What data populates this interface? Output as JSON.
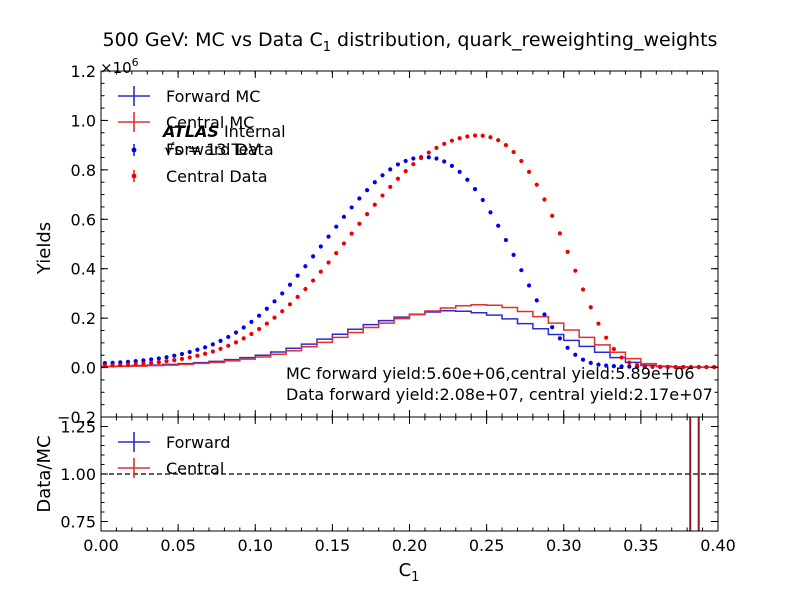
{
  "chart_data": [
    {
      "type": "line",
      "panel": "main",
      "title_prefix": "500 GeV: MC vs Data C",
      "title_sub": "1",
      "title_suffix": " distribution, quark_reweighting_weights",
      "xlabel_main": "C",
      "xlabel_sub": "1",
      "ylabel": "Yields",
      "scale_base": "×10",
      "scale_exp": "6",
      "xlim": [
        0.0,
        0.4
      ],
      "ylim": [
        -0.2,
        1.2
      ],
      "grid": false,
      "legend_position": "top-left",
      "x_tick_labels": [
        "0.00",
        "0.05",
        "0.10",
        "0.15",
        "0.20",
        "0.25",
        "0.30",
        "0.35",
        "0.40"
      ],
      "y_tick_labels": [
        "−0.2",
        "0.0",
        "0.2",
        "0.4",
        "0.6",
        "0.8",
        "1.0",
        "1.2"
      ],
      "bin_edges": [
        0.0,
        0.01,
        0.02,
        0.03,
        0.04,
        0.05,
        0.06,
        0.07,
        0.08,
        0.09,
        0.1,
        0.11,
        0.12,
        0.13,
        0.14,
        0.15,
        0.16,
        0.17,
        0.18,
        0.19,
        0.2,
        0.21,
        0.22,
        0.23,
        0.24,
        0.25,
        0.26,
        0.27,
        0.28,
        0.29,
        0.3,
        0.31,
        0.32,
        0.33,
        0.34,
        0.35,
        0.36,
        0.37,
        0.38,
        0.39,
        0.4
      ],
      "series": [
        {
          "name": "Forward MC",
          "style": "step",
          "color": "#2b2bd6",
          "values": [
            0.005,
            0.006,
            0.008,
            0.01,
            0.013,
            0.016,
            0.02,
            0.025,
            0.032,
            0.04,
            0.05,
            0.063,
            0.078,
            0.095,
            0.115,
            0.135,
            0.155,
            0.174,
            0.19,
            0.204,
            0.216,
            0.225,
            0.23,
            0.228,
            0.222,
            0.212,
            0.197,
            0.178,
            0.157,
            0.134,
            0.11,
            0.086,
            0.062,
            0.04,
            0.021,
            0.009,
            0.004,
            0.003,
            0.002,
            0.002
          ]
        },
        {
          "name": "Central MC",
          "style": "step",
          "color": "#e03030",
          "values": [
            0.004,
            0.005,
            0.006,
            0.008,
            0.01,
            0.013,
            0.017,
            0.021,
            0.027,
            0.034,
            0.043,
            0.054,
            0.068,
            0.084,
            0.102,
            0.122,
            0.142,
            0.162,
            0.18,
            0.198,
            0.214,
            0.229,
            0.241,
            0.25,
            0.254,
            0.252,
            0.243,
            0.227,
            0.206,
            0.18,
            0.152,
            0.122,
            0.092,
            0.062,
            0.036,
            0.016,
            0.006,
            0.003,
            0.002,
            0.002
          ]
        },
        {
          "name": "Forward Data",
          "style": "points",
          "color": "#0000ee",
          "x": [
            0.0025,
            0.0075,
            0.0125,
            0.0175,
            0.0225,
            0.0275,
            0.0325,
            0.0375,
            0.0425,
            0.0475,
            0.0525,
            0.0575,
            0.0625,
            0.0675,
            0.0725,
            0.0775,
            0.0825,
            0.0875,
            0.0925,
            0.0975,
            0.1025,
            0.1075,
            0.1125,
            0.1175,
            0.1225,
            0.1275,
            0.1325,
            0.1375,
            0.1425,
            0.1475,
            0.1525,
            0.1575,
            0.1625,
            0.1675,
            0.1725,
            0.1775,
            0.1825,
            0.1875,
            0.1925,
            0.1975,
            0.2025,
            0.2075,
            0.2125,
            0.2175,
            0.2225,
            0.2275,
            0.2325,
            0.2375,
            0.2425,
            0.2475,
            0.2525,
            0.2575,
            0.2625,
            0.2675,
            0.2725,
            0.2775,
            0.2825,
            0.2875,
            0.2925,
            0.2975,
            0.3025,
            0.3075,
            0.3125,
            0.3175,
            0.3225,
            0.3275,
            0.3325,
            0.3375,
            0.3425,
            0.3475,
            0.3525,
            0.3575,
            0.3625,
            0.3675,
            0.3725,
            0.3775,
            0.3825,
            0.3875,
            0.3925,
            0.3975
          ],
          "values": [
            0.018,
            0.019,
            0.021,
            0.023,
            0.026,
            0.029,
            0.033,
            0.037,
            0.042,
            0.048,
            0.055,
            0.063,
            0.072,
            0.082,
            0.094,
            0.108,
            0.124,
            0.142,
            0.162,
            0.185,
            0.21,
            0.238,
            0.268,
            0.3,
            0.335,
            0.372,
            0.41,
            0.45,
            0.49,
            0.53,
            0.57,
            0.61,
            0.648,
            0.684,
            0.718,
            0.75,
            0.778,
            0.802,
            0.822,
            0.836,
            0.846,
            0.851,
            0.851,
            0.846,
            0.834,
            0.816,
            0.792,
            0.76,
            0.722,
            0.678,
            0.628,
            0.574,
            0.516,
            0.456,
            0.394,
            0.332,
            0.272,
            0.215,
            0.163,
            0.118,
            0.08,
            0.052,
            0.032,
            0.019,
            0.012,
            0.008,
            0.006,
            0.005,
            0.004,
            0.004,
            0.003,
            0.003,
            0.003,
            0.002,
            0.002,
            0.002,
            0.002,
            0.002,
            0.002,
            0.002
          ]
        },
        {
          "name": "Central Data",
          "style": "points",
          "color": "#ee0000",
          "x": [
            0.0025,
            0.0075,
            0.0125,
            0.0175,
            0.0225,
            0.0275,
            0.0325,
            0.0375,
            0.0425,
            0.0475,
            0.0525,
            0.0575,
            0.0625,
            0.0675,
            0.0725,
            0.0775,
            0.0825,
            0.0875,
            0.0925,
            0.0975,
            0.1025,
            0.1075,
            0.1125,
            0.1175,
            0.1225,
            0.1275,
            0.1325,
            0.1375,
            0.1425,
            0.1475,
            0.1525,
            0.1575,
            0.1625,
            0.1675,
            0.1725,
            0.1775,
            0.1825,
            0.1875,
            0.1925,
            0.1975,
            0.2025,
            0.2075,
            0.2125,
            0.2175,
            0.2225,
            0.2275,
            0.2325,
            0.2375,
            0.2425,
            0.2475,
            0.2525,
            0.2575,
            0.2625,
            0.2675,
            0.2725,
            0.2775,
            0.2825,
            0.2875,
            0.2925,
            0.2975,
            0.3025,
            0.3075,
            0.3125,
            0.3175,
            0.3225,
            0.3275,
            0.3325,
            0.3375,
            0.3425,
            0.3475,
            0.3525,
            0.3575,
            0.3625,
            0.3675,
            0.3725,
            0.3775,
            0.3825,
            0.3875,
            0.3925,
            0.3975
          ],
          "values": [
            0.008,
            0.009,
            0.01,
            0.012,
            0.014,
            0.016,
            0.019,
            0.022,
            0.026,
            0.03,
            0.035,
            0.041,
            0.048,
            0.056,
            0.065,
            0.076,
            0.088,
            0.102,
            0.118,
            0.136,
            0.156,
            0.178,
            0.202,
            0.228,
            0.256,
            0.286,
            0.318,
            0.352,
            0.388,
            0.425,
            0.463,
            0.502,
            0.542,
            0.582,
            0.621,
            0.659,
            0.696,
            0.731,
            0.764,
            0.795,
            0.823,
            0.848,
            0.87,
            0.889,
            0.905,
            0.918,
            0.928,
            0.935,
            0.939,
            0.938,
            0.932,
            0.92,
            0.9,
            0.872,
            0.836,
            0.792,
            0.74,
            0.68,
            0.614,
            0.543,
            0.468,
            0.392,
            0.316,
            0.244,
            0.178,
            0.121,
            0.075,
            0.041,
            0.02,
            0.01,
            0.006,
            0.004,
            0.003,
            0.003,
            0.002,
            0.002,
            0.002,
            0.002,
            0.002,
            0.002
          ]
        }
      ],
      "annotations": {
        "atlas_bold": "ATLAS",
        "atlas_rest": " Internal",
        "energy": "√s = 13 TeV",
        "mc_yield": "MC forward yield:5.60e+06,central yield:5.89e+06",
        "data_yield": "Data forward yield:2.08e+07, central yield:2.17e+07"
      }
    },
    {
      "type": "line",
      "panel": "ratio",
      "ylabel": "Data/MC",
      "xlim": [
        0.0,
        0.4
      ],
      "ylim": [
        0.7,
        1.3
      ],
      "y_tick_labels": [
        "0.75",
        "1.00",
        "1.25"
      ],
      "reference_line": 1.0,
      "legend_position": "top-left",
      "series": [
        {
          "name": "Forward",
          "color": "#2b2bd6",
          "visible_x": 0.3845,
          "visible_values": ">1.3"
        },
        {
          "name": "Central",
          "color": "#e03030",
          "visible_x": 0.3855,
          "visible_values": ">1.3"
        }
      ],
      "extra_markers": {
        "dark_red_verticals_x": [
          0.382,
          0.3875
        ],
        "color": "#8b1a2e"
      }
    }
  ]
}
